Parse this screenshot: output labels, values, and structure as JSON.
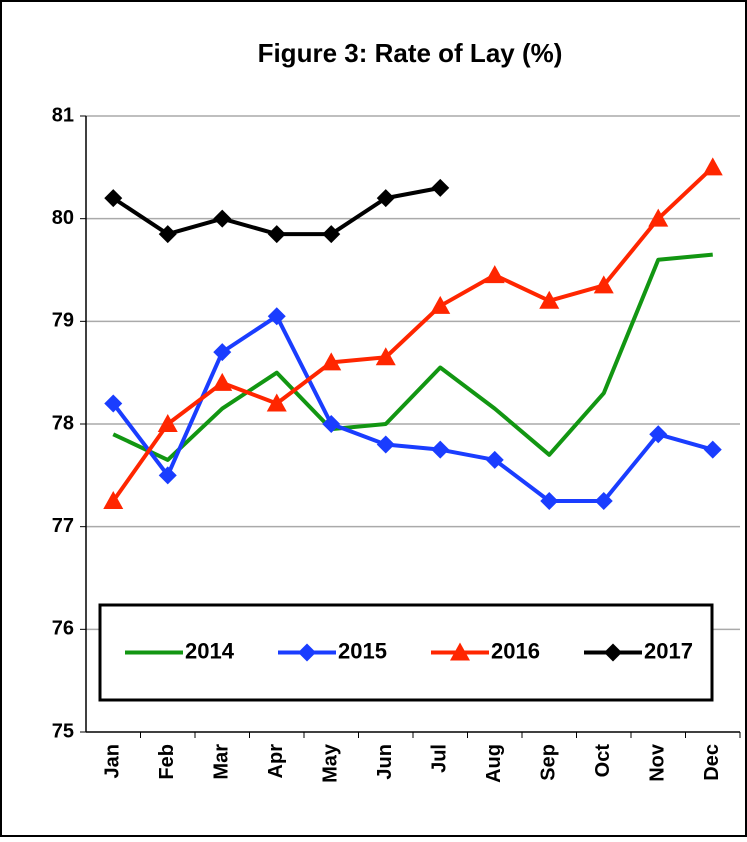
{
  "chart_data": {
    "type": "line",
    "title": "Figure 3: Rate of Lay (%)",
    "categories": [
      "Jan",
      "Feb",
      "Mar",
      "Apr",
      "May",
      "Jun",
      "Jul",
      "Aug",
      "Sep",
      "Oct",
      "Nov",
      "Dec"
    ],
    "series": [
      {
        "name": "2014",
        "color": "#129612",
        "marker": "none",
        "values": [
          77.9,
          77.65,
          78.15,
          78.5,
          77.95,
          78.0,
          78.55,
          78.15,
          77.7,
          78.3,
          79.6,
          79.65
        ]
      },
      {
        "name": "2015",
        "color": "#1a3dff",
        "marker": "diamond",
        "values": [
          78.2,
          77.5,
          78.7,
          79.05,
          78.0,
          77.8,
          77.75,
          77.65,
          77.25,
          77.25,
          77.9,
          77.75
        ]
      },
      {
        "name": "2016",
        "color": "#ff2600",
        "marker": "triangle",
        "values": [
          77.25,
          78.0,
          78.4,
          78.2,
          78.6,
          78.65,
          79.15,
          79.45,
          79.2,
          79.35,
          80.0,
          80.5
        ]
      },
      {
        "name": "2017",
        "color": "#000000",
        "marker": "diamond",
        "values": [
          80.2,
          79.85,
          80.0,
          79.85,
          79.85,
          80.2,
          80.3,
          null,
          null,
          null,
          null,
          null
        ]
      }
    ],
    "ylim": [
      75,
      81
    ],
    "yticks": [
      75,
      76,
      77,
      78,
      79,
      80,
      81
    ],
    "grid": true,
    "legend": "bottom"
  }
}
